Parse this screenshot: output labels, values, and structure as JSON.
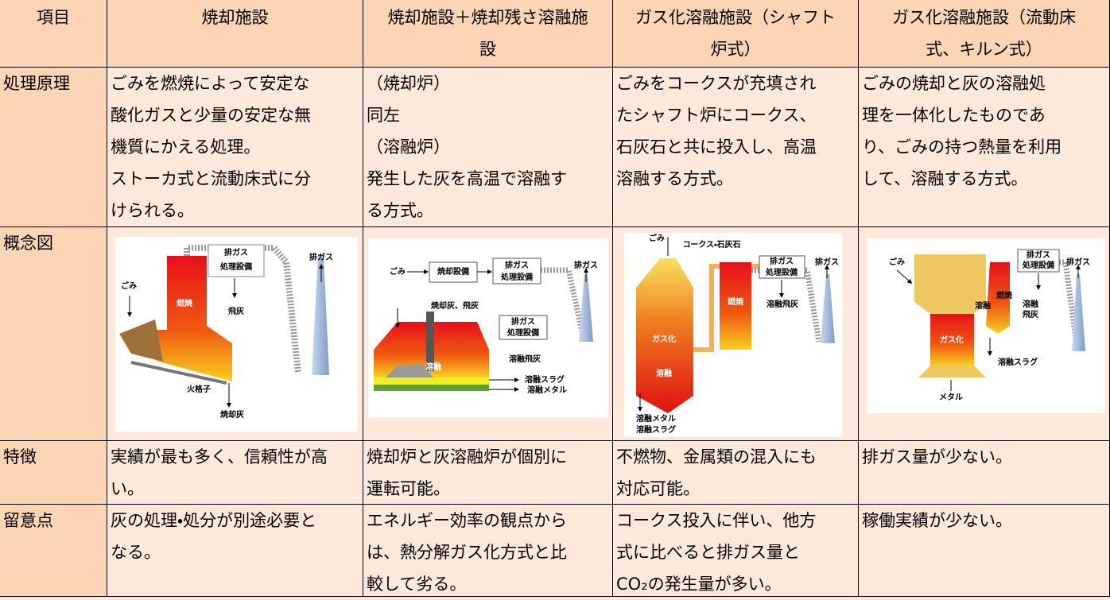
{
  "table": {
    "header": [
      [
        "項目"
      ],
      [
        "焼却施設"
      ],
      [
        "焼却施設＋焼却残さ溶融施",
        "設"
      ],
      [
        "ガス化溶融施設（シャフト",
        "炉式）"
      ],
      [
        "ガス化溶融施設（流動床",
        "式、キルン式）"
      ]
    ],
    "rows": [
      {
        "label": "処理原理",
        "cells": [
          [
            "ごみを燃焼によって安定な",
            "酸化ガスと少量の安定な無",
            "機質にかえる処理。",
            "ストーカ式と流動床式に分",
            "けられる。"
          ],
          [
            "（焼却炉）",
            "同左",
            "（溶融炉）",
            "発生した灰を高温で溶融す",
            "る方式。"
          ],
          [
            "ごみをコークスが充填され",
            "たシャフト炉にコークス、",
            "石灰石と共に投入し、高温",
            "溶融する方式。"
          ],
          [
            "ごみの焼却と灰の溶融処",
            "理を一体化したものであ",
            "り、ごみの持つ熱量を利用",
            "して、溶融する方式。"
          ]
        ]
      },
      {
        "label": "概念図",
        "diagrams": [
          [
            "排ガス",
            "処理設備",
            "排ガス",
            "ごみ",
            "燃焼",
            "飛灰",
            "火格子",
            "焼却灰"
          ],
          [
            "ごみ",
            "焼却設備",
            "排ガス",
            "処理設備",
            "排ガス",
            "焼却灰、飛灰",
            "排ガス",
            "処理設備",
            "溶融飛灰",
            "溶融",
            "溶融スラグ",
            "溶融メタル"
          ],
          [
            "ごみ",
            "コークス・石灰石",
            "排ガス",
            "処理設備",
            "排ガス",
            "燃焼",
            "溶融飛灰",
            "ガス化",
            "溶融",
            "溶融メタル",
            "溶融スラグ"
          ],
          [
            "ごみ",
            "排ガス",
            "処理設備",
            "排ガス",
            "燃焼",
            "溶融",
            "溶融",
            "飛灰",
            "ガス化",
            "溶融スラグ",
            "メタル"
          ]
        ]
      },
      {
        "label": "特徴",
        "cells": [
          [
            "実績が最も多く、信頼性が高",
            "い。"
          ],
          [
            "焼却炉と灰溶融炉が個別に",
            "運転可能。"
          ],
          [
            "不燃物、金属類の混入にも",
            "対応可能。"
          ],
          [
            "排ガス量が少ない。"
          ]
        ]
      },
      {
        "label": "留意点",
        "cells": [
          [
            "灰の処理・処分が別途必要と",
            "なる。"
          ],
          [
            "エネルギー効率の観点から",
            "は、熱分解ガス化方式と比",
            "較して劣る。"
          ],
          [
            "コークス投入に伴い、他方",
            "式に比べると排ガス量と",
            "CO₂の発生量が多い。"
          ],
          [
            "稼働実績が少ない。"
          ]
        ]
      }
    ]
  }
}
